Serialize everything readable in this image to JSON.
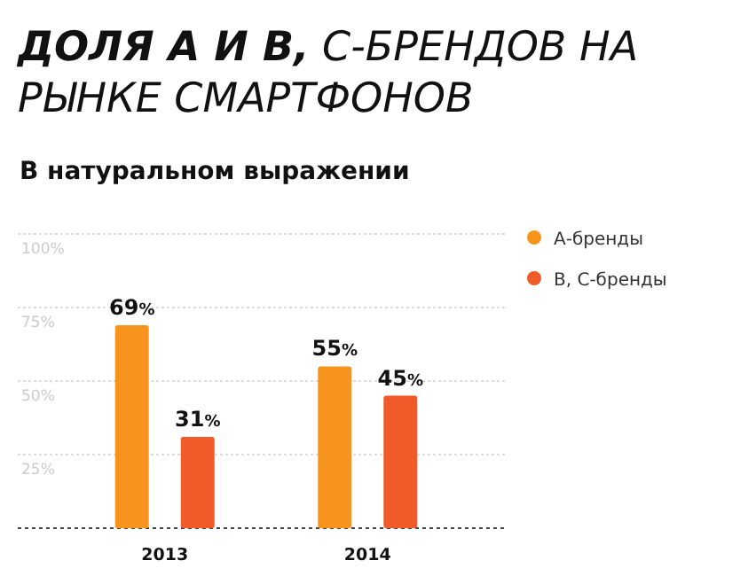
{
  "chart_data": {
    "type": "bar",
    "title": "ДОЛЯ А И В, С-БРЕНДОВ НА РЫНКЕ СМАРТФОНОВ",
    "subtitle": "В натуральном выражении",
    "categories": [
      "2013",
      "2014"
    ],
    "series": [
      {
        "name": "А-бренды",
        "color": "#f7941d",
        "values": [
          69,
          55
        ],
        "value_labels": [
          "69%",
          "55%"
        ]
      },
      {
        "name": "В, С-бренды",
        "color": "#f15a29",
        "values": [
          31,
          45
        ],
        "value_labels": [
          "31%",
          "45%"
        ]
      }
    ],
    "ylim": [
      0,
      100
    ],
    "yticks": [
      {
        "value": 0,
        "label": null
      },
      {
        "value": 25,
        "label": "25%"
      },
      {
        "value": 50,
        "label": "50%"
      },
      {
        "value": 75,
        "label": "75%"
      },
      {
        "value": 100,
        "label": "100%"
      }
    ],
    "grid": "y",
    "legend": "right"
  }
}
